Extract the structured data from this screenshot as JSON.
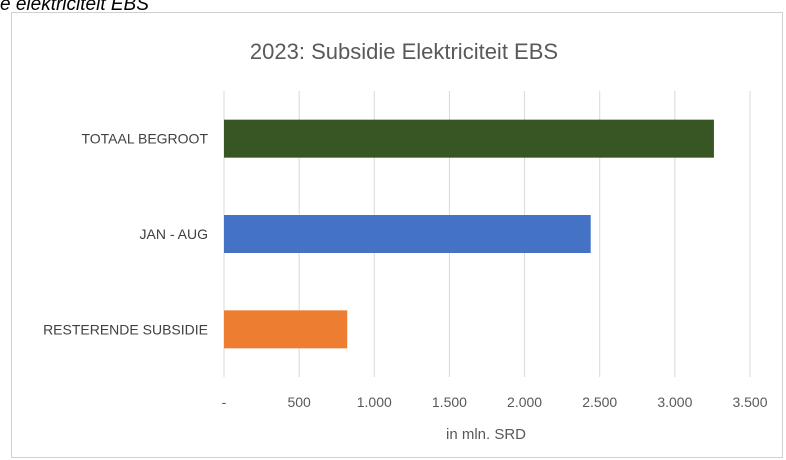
{
  "caption": "e elektriciteit EBS",
  "chart_data": {
    "type": "bar",
    "orientation": "horizontal",
    "title": "2023: Subsidie Elektriciteit EBS",
    "categories": [
      "TOTAAL BEGROOT",
      "JAN - AUG",
      "RESTERENDE SUBSIDIE"
    ],
    "values": [
      3260,
      2440,
      820
    ],
    "colors": [
      "#375623",
      "#4472c4",
      "#ed7d31"
    ],
    "xlabel": "in mln. SRD",
    "ylabel": "",
    "xlim": [
      0,
      3500
    ],
    "ticks": [
      0,
      500,
      1000,
      1500,
      2000,
      2500,
      3000,
      3500
    ],
    "tick_labels": [
      "-",
      "500",
      "1.000",
      "1.500",
      "2.000",
      "2.500",
      "3.000",
      "3.500"
    ],
    "grid": "vertical",
    "legend": "none"
  }
}
